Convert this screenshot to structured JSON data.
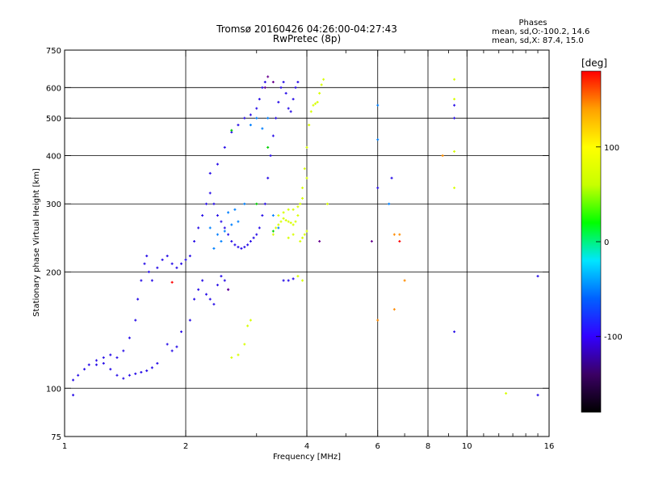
{
  "chart_data": {
    "type": "scatter",
    "title": "Tromsø 20160426 04:26:00-04:27:43",
    "subtitle": "RwPretec (8p)",
    "xlabel": "Frequency [MHz]",
    "ylabel": "Stationary phase Virtual Height [km]",
    "x_scale": "log",
    "y_scale": "log",
    "xlim": [
      1,
      16
    ],
    "ylim": [
      75,
      750
    ],
    "x_ticks": [
      1,
      2,
      4,
      6,
      8,
      10,
      16
    ],
    "x_tick_labels": [
      "1",
      "2",
      "4",
      "6",
      "8",
      "10",
      "16"
    ],
    "x_minor_ticks": [
      3,
      5,
      7,
      9,
      11,
      12,
      13,
      14,
      15
    ],
    "y_ticks": [
      75,
      100,
      200,
      300,
      400,
      500,
      600,
      750
    ],
    "y_tick_labels": [
      "75",
      "100",
      "200",
      "300",
      "400",
      "500",
      "600",
      "750"
    ],
    "grid": true,
    "legend_box": {
      "heading": "Phases",
      "line1": "mean, sd,O:-100.2, 14.6",
      "line2": "mean, sd,X:  87.4, 15.0"
    },
    "colorbar": {
      "label": "[deg]",
      "min": -180,
      "max": 180,
      "ticks": [
        -100,
        0,
        100
      ],
      "tick_labels": [
        "-100",
        "0",
        "100"
      ],
      "colormap": [
        "#000000",
        "#3b0064",
        "#3200ff",
        "#0060ff",
        "#00e6ff",
        "#00ff00",
        "#c8ff00",
        "#ffff00",
        "#ffa000",
        "#ff0000"
      ]
    },
    "series": [
      {
        "color": "#2a10e8",
        "points": [
          [
            1.05,
            105
          ],
          [
            1.08,
            108
          ],
          [
            1.12,
            112
          ],
          [
            1.15,
            115
          ],
          [
            1.2,
            118
          ],
          [
            1.25,
            116
          ],
          [
            1.3,
            112
          ],
          [
            1.35,
            108
          ],
          [
            1.4,
            106
          ],
          [
            1.45,
            108
          ],
          [
            1.5,
            109
          ],
          [
            1.55,
            110
          ],
          [
            1.6,
            111
          ],
          [
            1.65,
            113
          ],
          [
            1.7,
            116
          ],
          [
            1.35,
            120
          ],
          [
            1.3,
            122
          ],
          [
            1.25,
            120
          ],
          [
            1.2,
            115
          ],
          [
            1.4,
            125
          ],
          [
            1.45,
            135
          ],
          [
            1.5,
            150
          ],
          [
            1.52,
            170
          ],
          [
            1.55,
            190
          ],
          [
            1.58,
            210
          ],
          [
            1.6,
            220
          ],
          [
            1.62,
            200
          ],
          [
            1.65,
            190
          ],
          [
            1.7,
            205
          ],
          [
            1.75,
            215
          ],
          [
            1.8,
            220
          ],
          [
            1.85,
            210
          ],
          [
            1.9,
            205
          ],
          [
            1.95,
            210
          ],
          [
            2.0,
            215
          ],
          [
            2.05,
            220
          ],
          [
            2.1,
            240
          ],
          [
            2.15,
            260
          ],
          [
            2.2,
            280
          ],
          [
            2.25,
            300
          ],
          [
            2.3,
            320
          ],
          [
            2.35,
            300
          ],
          [
            2.4,
            280
          ],
          [
            2.45,
            270
          ],
          [
            2.5,
            260
          ],
          [
            2.55,
            250
          ],
          [
            2.6,
            240
          ],
          [
            2.65,
            235
          ],
          [
            2.7,
            232
          ],
          [
            2.75,
            230
          ],
          [
            2.8,
            232
          ],
          [
            2.85,
            235
          ],
          [
            2.9,
            240
          ],
          [
            2.95,
            245
          ],
          [
            3.0,
            250
          ],
          [
            3.05,
            260
          ],
          [
            3.1,
            280
          ],
          [
            3.15,
            300
          ],
          [
            3.2,
            350
          ],
          [
            3.25,
            400
          ],
          [
            3.3,
            450
          ],
          [
            3.35,
            500
          ],
          [
            3.4,
            550
          ],
          [
            3.45,
            600
          ],
          [
            3.5,
            620
          ],
          [
            3.55,
            580
          ],
          [
            3.6,
            530
          ],
          [
            3.65,
            520
          ],
          [
            3.7,
            560
          ],
          [
            3.75,
            600
          ],
          [
            3.8,
            620
          ],
          [
            2.3,
            360
          ],
          [
            2.4,
            380
          ],
          [
            2.5,
            420
          ],
          [
            2.6,
            460
          ],
          [
            2.7,
            480
          ],
          [
            2.8,
            500
          ],
          [
            2.9,
            510
          ],
          [
            3.0,
            530
          ],
          [
            3.05,
            560
          ],
          [
            3.1,
            600
          ],
          [
            3.15,
            620
          ],
          [
            1.95,
            140
          ],
          [
            2.05,
            150
          ],
          [
            2.1,
            170
          ],
          [
            2.15,
            180
          ],
          [
            2.2,
            190
          ],
          [
            2.25,
            175
          ],
          [
            2.3,
            170
          ],
          [
            2.35,
            165
          ],
          [
            2.4,
            185
          ],
          [
            2.45,
            195
          ],
          [
            2.5,
            190
          ],
          [
            2.55,
            180
          ],
          [
            1.8,
            130
          ],
          [
            1.85,
            125
          ],
          [
            1.9,
            128
          ],
          [
            3.5,
            190
          ],
          [
            3.6,
            190
          ],
          [
            3.7,
            192
          ],
          [
            1.05,
            96
          ],
          [
            15.0,
            96
          ],
          [
            15.0,
            195
          ],
          [
            9.3,
            140
          ],
          [
            9.3,
            500
          ],
          [
            9.3,
            540
          ],
          [
            6.5,
            350
          ],
          [
            6.0,
            330
          ]
        ]
      },
      {
        "color": "#0080ff",
        "points": [
          [
            2.3,
            260
          ],
          [
            2.4,
            250
          ],
          [
            2.5,
            255
          ],
          [
            2.6,
            265
          ],
          [
            2.7,
            270
          ],
          [
            2.8,
            300
          ],
          [
            2.9,
            480
          ],
          [
            3.0,
            500
          ],
          [
            3.1,
            470
          ],
          [
            3.2,
            500
          ],
          [
            3.3,
            280
          ],
          [
            3.4,
            260
          ],
          [
            2.35,
            230
          ],
          [
            2.45,
            240
          ],
          [
            2.55,
            285
          ],
          [
            2.65,
            290
          ],
          [
            6.0,
            540
          ],
          [
            6.0,
            440
          ],
          [
            6.4,
            300
          ]
        ]
      },
      {
        "color": "#d8ff00",
        "points": [
          [
            3.3,
            250
          ],
          [
            3.35,
            260
          ],
          [
            3.4,
            265
          ],
          [
            3.45,
            270
          ],
          [
            3.5,
            275
          ],
          [
            3.55,
            272
          ],
          [
            3.6,
            270
          ],
          [
            3.65,
            268
          ],
          [
            3.7,
            265
          ],
          [
            3.75,
            270
          ],
          [
            3.8,
            280
          ],
          [
            3.85,
            300
          ],
          [
            3.9,
            330
          ],
          [
            3.95,
            370
          ],
          [
            4.0,
            420
          ],
          [
            4.05,
            480
          ],
          [
            4.1,
            520
          ],
          [
            4.15,
            540
          ],
          [
            4.2,
            545
          ],
          [
            4.25,
            550
          ],
          [
            4.3,
            580
          ],
          [
            4.35,
            610
          ],
          [
            4.4,
            630
          ],
          [
            3.4,
            280
          ],
          [
            3.5,
            285
          ],
          [
            3.6,
            290
          ],
          [
            3.7,
            290
          ],
          [
            3.8,
            295
          ],
          [
            3.9,
            310
          ],
          [
            4.0,
            350
          ],
          [
            3.85,
            240
          ],
          [
            3.9,
            245
          ],
          [
            3.95,
            250
          ],
          [
            4.0,
            255
          ],
          [
            3.6,
            245
          ],
          [
            3.7,
            250
          ],
          [
            2.9,
            150
          ],
          [
            2.85,
            145
          ],
          [
            2.8,
            130
          ],
          [
            2.7,
            122
          ],
          [
            2.6,
            120
          ],
          [
            3.8,
            195
          ],
          [
            3.9,
            190
          ],
          [
            9.3,
            630
          ],
          [
            9.3,
            560
          ],
          [
            9.3,
            410
          ],
          [
            9.3,
            330
          ],
          [
            4.5,
            300
          ],
          [
            12.5,
            97
          ]
        ]
      },
      {
        "color": "#ff8c00",
        "points": [
          [
            6.0,
            150
          ],
          [
            6.6,
            160
          ],
          [
            7.0,
            190
          ],
          [
            6.6,
            250
          ],
          [
            8.7,
            400
          ],
          [
            6.8,
            250
          ]
        ]
      },
      {
        "color": "#ff0000",
        "points": [
          [
            6.8,
            240
          ],
          [
            1.85,
            188
          ]
        ]
      },
      {
        "color": "#00d000",
        "points": [
          [
            2.6,
            465
          ],
          [
            3.2,
            420
          ],
          [
            3.0,
            300
          ],
          [
            3.3,
            255
          ]
        ]
      },
      {
        "color": "#6a0090",
        "points": [
          [
            2.55,
            180
          ],
          [
            3.3,
            620
          ],
          [
            3.2,
            640
          ],
          [
            3.15,
            600
          ],
          [
            4.3,
            240
          ],
          [
            5.8,
            240
          ]
        ]
      }
    ]
  }
}
